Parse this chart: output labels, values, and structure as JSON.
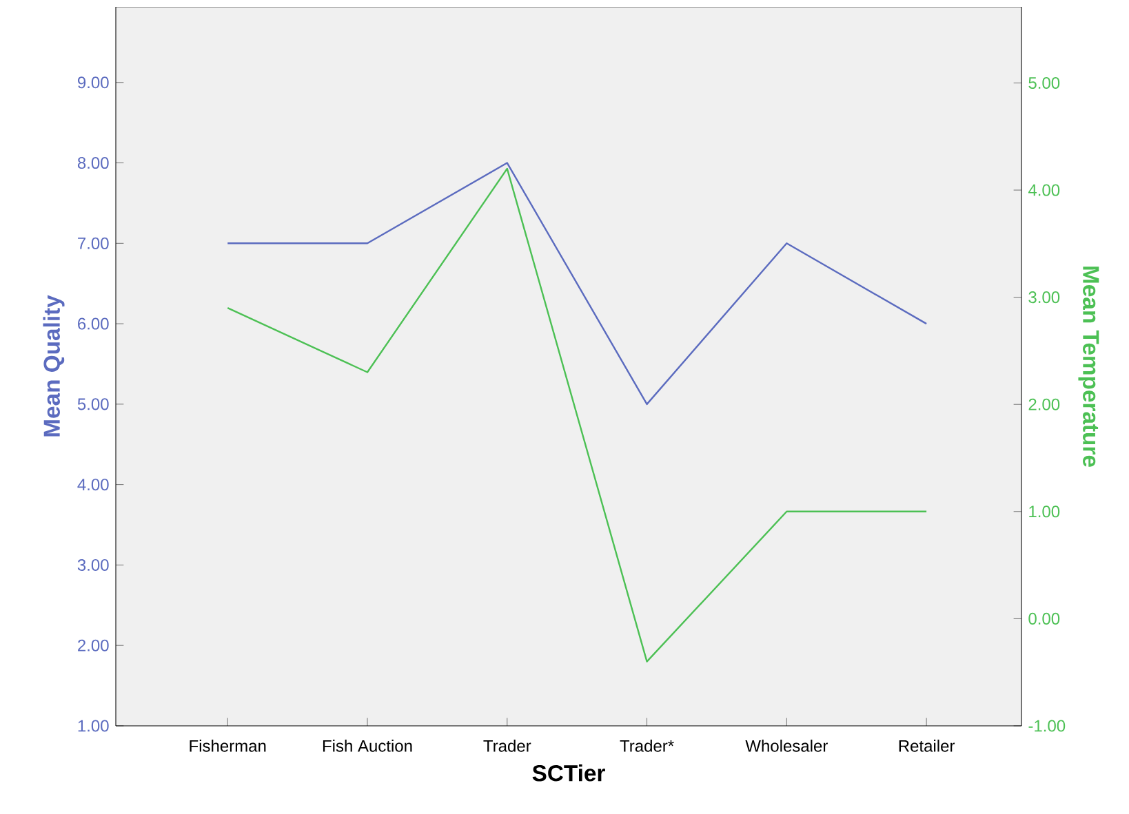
{
  "chart_data": {
    "type": "line",
    "xlabel": "SCTier",
    "ylabel": "Mean Quality",
    "y2label": "Mean Temperature",
    "categories": [
      "Fisherman",
      "Fish Auction",
      "Trader",
      "Trader*",
      "Wholesaler",
      "Retailer"
    ],
    "series": [
      {
        "color": "#5b6bbf",
        "values": [
          7,
          7,
          8,
          5,
          7,
          6
        ]
      },
      {
        "color": "#4cc054",
        "axis": "y2",
        "values": [
          2.9,
          2.3,
          4.2,
          -0.4,
          1.0,
          1.0
        ]
      }
    ],
    "ylim": [
      1,
      9.94
    ],
    "yticks": [
      {
        "value": 1,
        "label": "1.00"
      },
      {
        "value": 2,
        "label": "2.00"
      },
      {
        "value": 3,
        "label": "3.00"
      },
      {
        "value": 4,
        "label": "4.00"
      },
      {
        "value": 5,
        "label": "5.00"
      },
      {
        "value": 6,
        "label": "6.00"
      },
      {
        "value": 7,
        "label": "7.00"
      },
      {
        "value": 8,
        "label": "8.00"
      },
      {
        "value": 9,
        "label": "9.00"
      }
    ],
    "y2lim": [
      -1,
      5.71
    ],
    "y2ticks": [
      {
        "value": -1,
        "label": "-1.00"
      },
      {
        "value": 0,
        "label": "0.00"
      },
      {
        "value": 1,
        "label": "1.00"
      },
      {
        "value": 2,
        "label": "2.00"
      },
      {
        "value": 3,
        "label": "3.00"
      },
      {
        "value": 4,
        "label": "4.00"
      },
      {
        "value": 5,
        "label": "5.00"
      }
    ],
    "marker": "none",
    "line_style": "solid"
  }
}
